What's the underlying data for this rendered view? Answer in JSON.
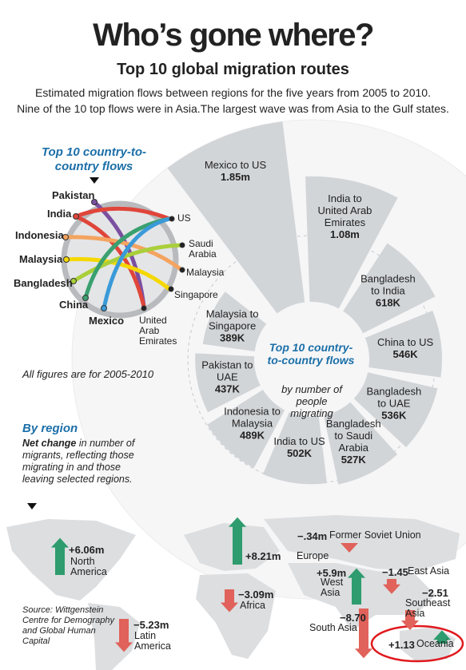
{
  "header": {
    "title": "Who’s gone where?",
    "subtitle": "Top 10 global migration routes",
    "intro": [
      "Estimated migration flows between regions for the five years from 2005 to 2010.",
      "Nine of the 10 top flows were in Asia.The largest wave was from Asia to the Gulf states."
    ]
  },
  "flow_diagram": {
    "title": "Top 10 country-to-country flows",
    "origins": [
      "Pakistan",
      "India",
      "Indonesia",
      "Malaysia",
      "Bangladesh",
      "China",
      "Mexico"
    ],
    "destinations": [
      "US",
      "Saudi Arabia",
      "Malaysia",
      "Singapore",
      "United Arab Emirates"
    ]
  },
  "note": "All figures are for 2005-2010",
  "chart_data": [
    {
      "type": "radial_bar",
      "title": "Top 10 country-to-country flows",
      "subtitle": "by number of people migrating",
      "categories": [
        "Mexico to US",
        "India to United Arab Emirates",
        "Bangladesh to India",
        "China to US",
        "Bangladesh to UAE",
        "Bangladesh to Saudi Arabia",
        "India to US",
        "Indonesia to Malaysia",
        "Pakistan to UAE",
        "Malaysia to Singapore"
      ],
      "values": [
        1850000,
        1080000,
        618000,
        546000,
        536000,
        527000,
        502000,
        489000,
        437000,
        389000
      ],
      "value_labels": [
        "1.85m",
        "1.08m",
        "618K",
        "546K",
        "536K",
        "527K",
        "502K",
        "489K",
        "437K",
        "389K"
      ],
      "color": "#d2d5d8"
    },
    {
      "type": "map_arrows",
      "title": "By region",
      "subtitle_bold": "Net change",
      "subtitle": "in number of migrants, reflecting those migrating in and those leaving selected regions.",
      "categories": [
        "North America",
        "Europe",
        "Former Soviet Union",
        "West Asia",
        "East Asia",
        "Africa",
        "Latin America",
        "South Asia",
        "Southeast Asia",
        "Oceania"
      ],
      "values": [
        6.06,
        8.21,
        -0.34,
        5.9,
        -1.45,
        -3.09,
        -5.23,
        -8.7,
        -2.51,
        1.13
      ],
      "value_labels": [
        "+6.06m",
        "+8.21m",
        "−.34m",
        "+5.9m",
        "−1.45",
        "−3.09m",
        "−5.23m",
        "−8.70",
        "−2.51",
        "+1.13"
      ],
      "colors": {
        "positive": "#2e9c6e",
        "negative": "#e0625a"
      }
    }
  ],
  "source": "Source: Wittgenstein Centre for Demography and Global Human Capital"
}
